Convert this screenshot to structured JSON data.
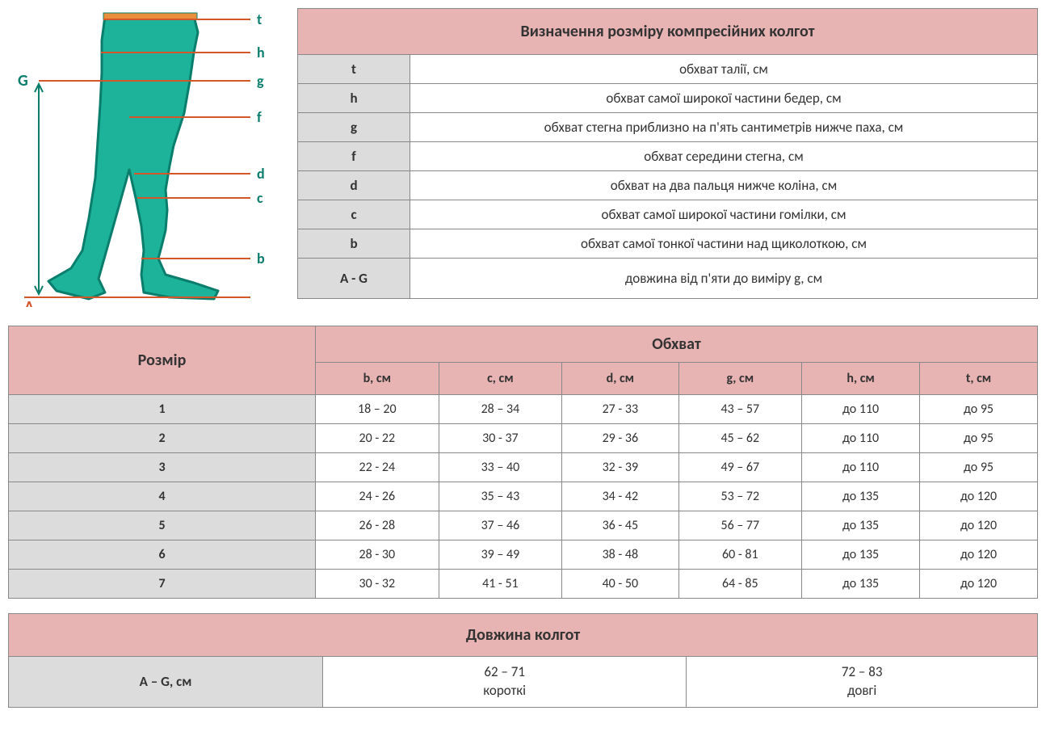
{
  "colors": {
    "header_bg": "#e8b3b3",
    "alt_bg": "#dcdcdc",
    "border": "#888888",
    "diagram_fill": "#1db39a",
    "diagram_stroke": "#0a7d6c",
    "marker_line": "#d4572a",
    "letter_color": "#0a7d6c",
    "g_letter": "#0a7d6c",
    "a_letter": "#d4572a"
  },
  "diagram": {
    "labels": [
      "t",
      "h",
      "g",
      "f",
      "d",
      "c",
      "b"
    ],
    "length_label": "G",
    "base_label": "A"
  },
  "definitions": {
    "title": "Визначення розміру компресійних колгот",
    "rows": [
      {
        "letter": "t",
        "desc": "обхват талії, см"
      },
      {
        "letter": "h",
        "desc": "обхват  самої широкої частини бедер, см"
      },
      {
        "letter": "g",
        "desc": "обхват стегна приблизно на п'ять сантиметрів нижче паха, см"
      },
      {
        "letter": "f",
        "desc": "обхват середини стегна, см"
      },
      {
        "letter": "d",
        "desc": "обхват на два пальця нижче коліна, см"
      },
      {
        "letter": "c",
        "desc": "обхват самої широкої частини гомілки, см"
      },
      {
        "letter": "b",
        "desc": "обхват самої тонкої частини над щиколоткою, см"
      },
      {
        "letter": "A - G",
        "desc": "довжина від п'яти до виміру g, см"
      }
    ]
  },
  "sizes": {
    "size_header": "Розмір",
    "group_header": "Обхват",
    "columns": [
      "b, см",
      "c, см",
      "d, см",
      "g, см",
      "h, см",
      "t, см"
    ],
    "rows": [
      {
        "n": "1",
        "v": [
          "18 – 20",
          "28 – 34",
          "27 - 33",
          "43 – 57",
          "до 110",
          "до 95"
        ]
      },
      {
        "n": "2",
        "v": [
          "20 - 22",
          "30 - 37",
          "29 - 36",
          "45 – 62",
          "до 110",
          "до 95"
        ]
      },
      {
        "n": "3",
        "v": [
          "22 - 24",
          "33 – 40",
          "32 - 39",
          "49 – 67",
          "до 110",
          "до 95"
        ]
      },
      {
        "n": "4",
        "v": [
          "24 - 26",
          "35 – 43",
          "34 - 42",
          "53 – 72",
          "до 135",
          "до 120"
        ]
      },
      {
        "n": "5",
        "v": [
          "26 - 28",
          "37 – 46",
          "36 - 45",
          "56 – 77",
          "до 135",
          "до 120"
        ]
      },
      {
        "n": "6",
        "v": [
          "28 - 30",
          "39 – 49",
          "38 - 48",
          "60 - 81",
          "до 135",
          "до 120"
        ]
      },
      {
        "n": "7",
        "v": [
          "30 - 32",
          "41 - 51",
          "40 - 50",
          "64 - 85",
          "до 135",
          "до 120"
        ]
      }
    ]
  },
  "length": {
    "title": "Довжина колгот",
    "label": "A – G, см",
    "cells": [
      {
        "range": "62 – 71",
        "word": "короткі"
      },
      {
        "range": "72 – 83",
        "word": "довгі"
      }
    ]
  }
}
